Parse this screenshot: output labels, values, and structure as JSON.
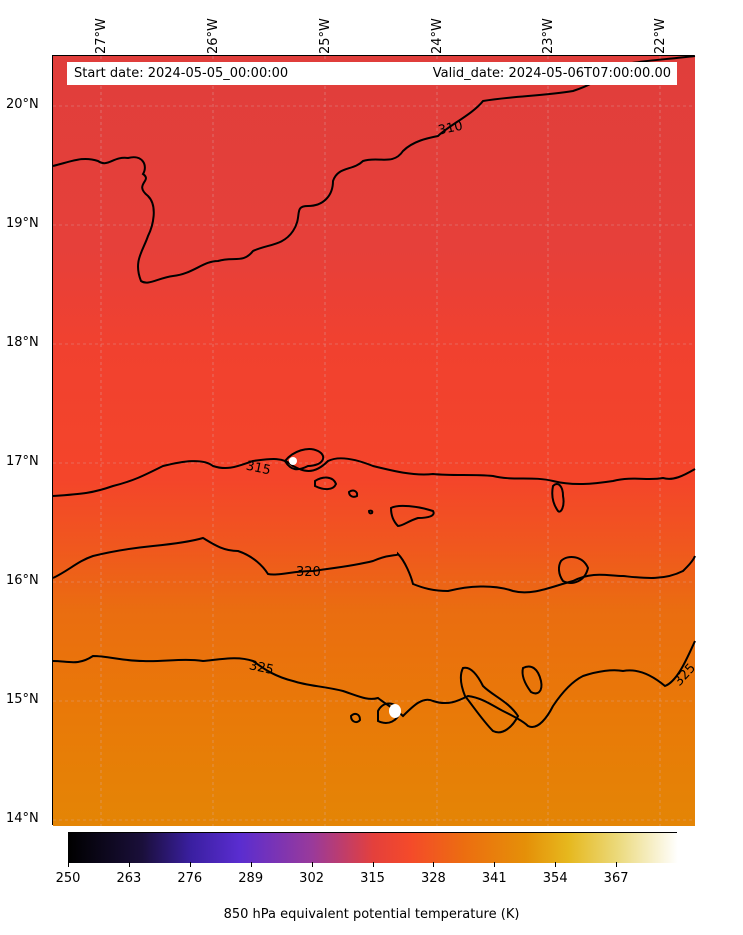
{
  "map": {
    "longitude_labels": [
      "27°W",
      "26°W",
      "25°W",
      "24°W",
      "23°W",
      "22°W"
    ],
    "latitude_labels": [
      "20°N",
      "19°N",
      "18°N",
      "17°N",
      "16°N",
      "15°N",
      "14°N"
    ],
    "start_date": "Start date: 2024-05-05_00:00:00",
    "valid_date": "Valid_date: 2024-05-06T07:00:00.00",
    "contour_labels": [
      "310",
      "315",
      "320",
      "325",
      "325"
    ],
    "colors": {
      "north_band": "#e43e36",
      "mid_band": "#f4402a",
      "south_band": "#e9700c",
      "far_south_band": "#e58306",
      "contour": "#000000"
    }
  },
  "colorbar": {
    "label": "850 hPa equivalent potential temperature (K)",
    "ticks": [
      "250",
      "263",
      "276",
      "289",
      "302",
      "315",
      "328",
      "341",
      "354",
      "367"
    ],
    "range": [
      250,
      380
    ]
  }
}
